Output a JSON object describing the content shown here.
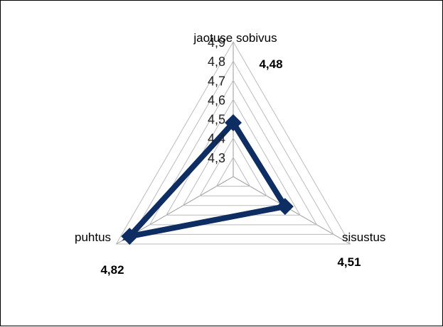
{
  "chart_data": {
    "type": "radar",
    "categories": [
      "jaotuse sobivus",
      "sisustus",
      "puhtus"
    ],
    "values": [
      4.48,
      4.51,
      4.82
    ],
    "data_labels": [
      "4,48",
      "4,51",
      "4,82"
    ],
    "r_ticks": [
      "4,3",
      "4,4",
      "4,5",
      "4,6",
      "4,7",
      "4,8",
      "4,9"
    ],
    "r_tick_values": [
      4.3,
      4.4,
      4.5,
      4.6,
      4.7,
      4.8,
      4.9
    ],
    "rlim": [
      4.2,
      4.9
    ],
    "grid": true,
    "legend": "none",
    "colors": {
      "series": "#0d2d63",
      "grid": "#bbbbbb",
      "axis": "#999999"
    }
  }
}
